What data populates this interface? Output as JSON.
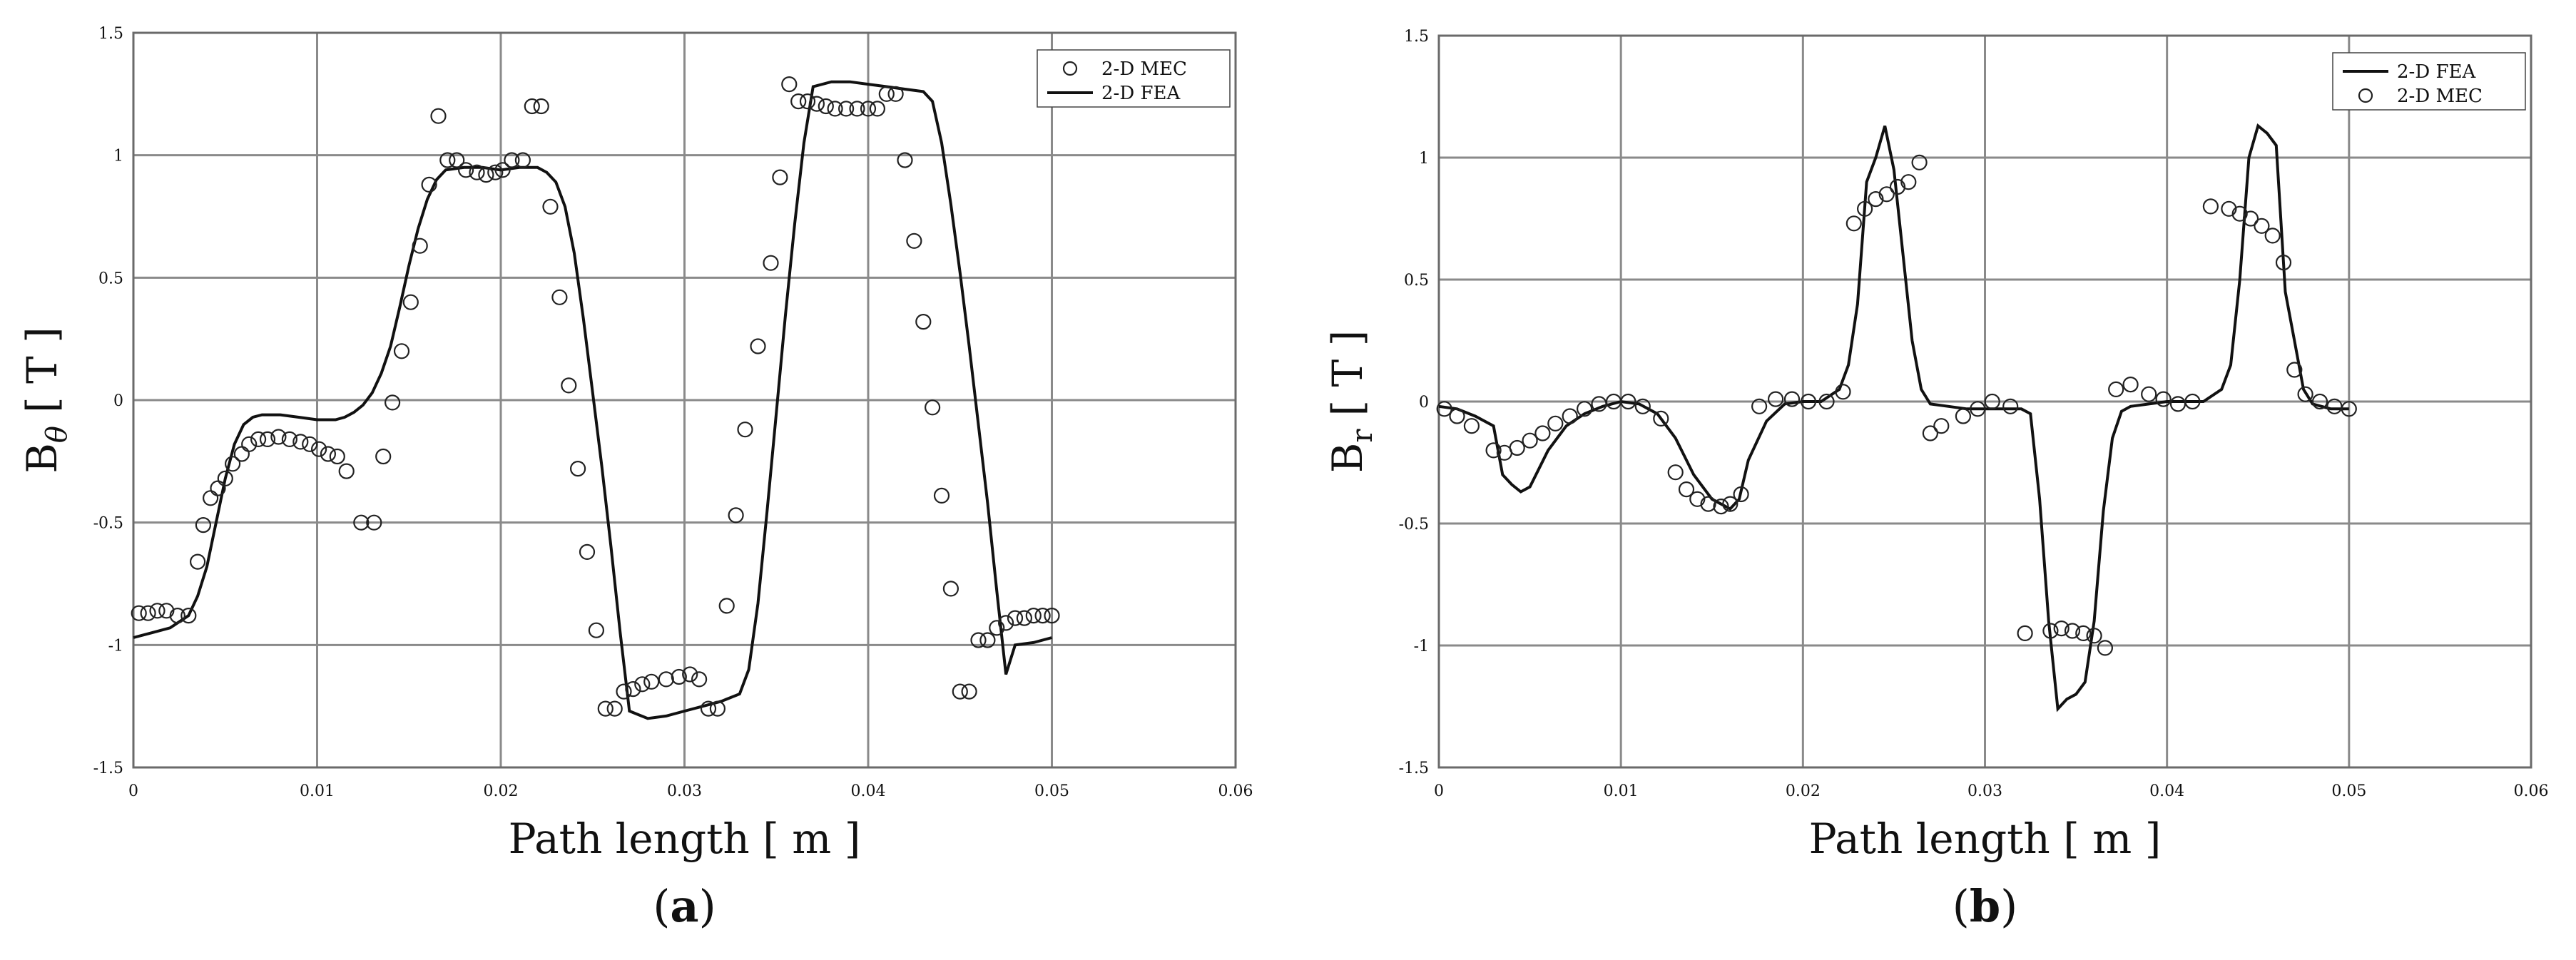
{
  "chart_data": [
    {
      "type": "line",
      "panel_label": "(a)",
      "panel_letter": "a",
      "xlabel": "Path length [ m ]",
      "ylabel_main": "B",
      "ylabel_sub": "θ",
      "ylabel_unit": "[ T ]",
      "xlim": [
        0,
        0.06
      ],
      "ylim": [
        -1.5,
        1.5
      ],
      "xticks": [
        "0",
        "0.01",
        "0.02",
        "0.03",
        "0.04",
        "0.05",
        "0.06"
      ],
      "yticks": [
        "-1.5",
        "-1",
        "-0.5",
        "0",
        "0.5",
        "1",
        "1.5"
      ],
      "grid": true,
      "legend_position": "top-right",
      "series": [
        {
          "name": "2-D MEC",
          "style": "markers",
          "marker": "open-circle",
          "color": "#222222",
          "x": [
            0.0003,
            0.0008,
            0.0013,
            0.0018,
            0.0024,
            0.003,
            0.0035,
            0.0038,
            0.0042,
            0.0046,
            0.005,
            0.0054,
            0.0059,
            0.0063,
            0.0068,
            0.0073,
            0.0079,
            0.0085,
            0.0091,
            0.0096,
            0.0101,
            0.0106,
            0.0111,
            0.0116,
            0.0124,
            0.0131,
            0.0136,
            0.0141,
            0.0146,
            0.0151,
            0.0156,
            0.0161,
            0.0166,
            0.0171,
            0.0176,
            0.0181,
            0.0187,
            0.0192,
            0.0197,
            0.0201,
            0.0206,
            0.0212,
            0.0217,
            0.0222,
            0.0227,
            0.0232,
            0.0237,
            0.0242,
            0.0247,
            0.0252,
            0.0257,
            0.0262,
            0.0267,
            0.0272,
            0.0277,
            0.0282,
            0.029,
            0.0297,
            0.0303,
            0.0308,
            0.0313,
            0.0318,
            0.0323,
            0.0328,
            0.0333,
            0.034,
            0.0347,
            0.0352,
            0.0357,
            0.0362,
            0.0367,
            0.0372,
            0.0377,
            0.0382,
            0.0388,
            0.0394,
            0.04,
            0.0405,
            0.041,
            0.0415,
            0.042,
            0.0425,
            0.043,
            0.0435,
            0.044,
            0.0445,
            0.045,
            0.0455,
            0.046,
            0.0465,
            0.047,
            0.0475,
            0.048,
            0.0485,
            0.049,
            0.0495,
            0.05
          ],
          "y": [
            -0.87,
            -0.87,
            -0.86,
            -0.86,
            -0.88,
            -0.88,
            -0.66,
            -0.51,
            -0.4,
            -0.36,
            -0.32,
            -0.26,
            -0.22,
            -0.18,
            -0.16,
            -0.16,
            -0.15,
            -0.16,
            -0.17,
            -0.18,
            -0.2,
            -0.22,
            -0.23,
            -0.29,
            -0.5,
            -0.5,
            -0.23,
            -0.01,
            0.2,
            0.4,
            0.63,
            0.88,
            1.16,
            0.98,
            0.98,
            0.94,
            0.93,
            0.92,
            0.93,
            0.94,
            0.98,
            0.98,
            1.2,
            1.2,
            0.79,
            0.42,
            0.06,
            -0.28,
            -0.62,
            -0.94,
            -1.26,
            -1.26,
            -1.19,
            -1.18,
            -1.16,
            -1.15,
            -1.14,
            -1.13,
            -1.12,
            -1.14,
            -1.26,
            -1.26,
            -0.84,
            -0.47,
            -0.12,
            0.22,
            0.56,
            0.91,
            1.29,
            1.22,
            1.22,
            1.21,
            1.2,
            1.19,
            1.19,
            1.19,
            1.19,
            1.19,
            1.25,
            1.25,
            0.98,
            0.65,
            0.32,
            -0.03,
            -0.39,
            -0.77,
            -1.19,
            -1.19,
            -0.98,
            -0.98,
            -0.93,
            -0.91,
            -0.89,
            -0.89,
            -0.88,
            -0.88,
            -0.88
          ]
        },
        {
          "name": "2-D FEA",
          "style": "line",
          "color": "#111111",
          "x": [
            0.0,
            0.001,
            0.002,
            0.003,
            0.0035,
            0.004,
            0.0045,
            0.005,
            0.0055,
            0.006,
            0.0065,
            0.007,
            0.0075,
            0.008,
            0.009,
            0.01,
            0.011,
            0.0115,
            0.012,
            0.0125,
            0.013,
            0.0135,
            0.014,
            0.0145,
            0.015,
            0.0155,
            0.016,
            0.0165,
            0.017,
            0.018,
            0.019,
            0.02,
            0.021,
            0.022,
            0.0225,
            0.023,
            0.0235,
            0.024,
            0.0245,
            0.025,
            0.0255,
            0.026,
            0.0265,
            0.027,
            0.028,
            0.029,
            0.03,
            0.031,
            0.032,
            0.033,
            0.0335,
            0.034,
            0.0345,
            0.035,
            0.0355,
            0.036,
            0.0365,
            0.037,
            0.038,
            0.039,
            0.04,
            0.041,
            0.042,
            0.043,
            0.0435,
            0.044,
            0.0445,
            0.045,
            0.0455,
            0.046,
            0.0465,
            0.047,
            0.0475,
            0.048,
            0.049,
            0.05
          ],
          "y": [
            -0.97,
            -0.95,
            -0.93,
            -0.88,
            -0.8,
            -0.68,
            -0.5,
            -0.32,
            -0.18,
            -0.1,
            -0.07,
            -0.06,
            -0.06,
            -0.06,
            -0.07,
            -0.08,
            -0.08,
            -0.07,
            -0.05,
            -0.02,
            0.03,
            0.11,
            0.22,
            0.38,
            0.55,
            0.7,
            0.82,
            0.9,
            0.94,
            0.95,
            0.95,
            0.94,
            0.95,
            0.95,
            0.93,
            0.89,
            0.79,
            0.6,
            0.33,
            0.03,
            -0.27,
            -0.6,
            -0.95,
            -1.27,
            -1.3,
            -1.29,
            -1.27,
            -1.25,
            -1.23,
            -1.2,
            -1.1,
            -0.83,
            -0.45,
            -0.05,
            0.35,
            0.72,
            1.05,
            1.28,
            1.3,
            1.3,
            1.29,
            1.28,
            1.27,
            1.26,
            1.22,
            1.05,
            0.8,
            0.52,
            0.22,
            -0.1,
            -0.42,
            -0.78,
            -1.12,
            -1.0,
            -0.99,
            -0.97
          ]
        }
      ]
    },
    {
      "type": "line",
      "panel_label": "(b)",
      "panel_letter": "b",
      "xlabel": "Path length [ m ]",
      "ylabel_main": "B",
      "ylabel_sub": "r",
      "ylabel_unit": "[ T ]",
      "xlim": [
        0,
        0.06
      ],
      "ylim": [
        -1.5,
        1.5
      ],
      "xticks": [
        "0",
        "0.01",
        "0.02",
        "0.03",
        "0.04",
        "0.05",
        "0.06"
      ],
      "yticks": [
        "-1.5",
        "-1",
        "-0.5",
        "0",
        "0.5",
        "1",
        "1.5"
      ],
      "grid": true,
      "legend_position": "top-right",
      "series": [
        {
          "name": "2-D FEA",
          "style": "line",
          "color": "#111111",
          "x": [
            0.0,
            0.001,
            0.002,
            0.003,
            0.0035,
            0.004,
            0.0045,
            0.005,
            0.006,
            0.007,
            0.008,
            0.009,
            0.01,
            0.011,
            0.012,
            0.013,
            0.014,
            0.015,
            0.016,
            0.0165,
            0.017,
            0.018,
            0.019,
            0.02,
            0.021,
            0.022,
            0.0225,
            0.023,
            0.0235,
            0.024,
            0.0245,
            0.025,
            0.0255,
            0.026,
            0.0265,
            0.027,
            0.028,
            0.029,
            0.03,
            0.031,
            0.032,
            0.0325,
            0.033,
            0.0335,
            0.034,
            0.0345,
            0.035,
            0.0355,
            0.036,
            0.0365,
            0.037,
            0.0375,
            0.038,
            0.039,
            0.04,
            0.041,
            0.042,
            0.043,
            0.0435,
            0.044,
            0.0445,
            0.045,
            0.0455,
            0.046,
            0.0465,
            0.047,
            0.0475,
            0.048,
            0.049,
            0.05
          ],
          "y": [
            -0.02,
            -0.03,
            -0.06,
            -0.1,
            -0.3,
            -0.34,
            -0.37,
            -0.35,
            -0.2,
            -0.1,
            -0.05,
            -0.02,
            0.0,
            -0.01,
            -0.05,
            -0.15,
            -0.3,
            -0.4,
            -0.44,
            -0.4,
            -0.24,
            -0.08,
            -0.01,
            0.0,
            0.0,
            0.05,
            0.15,
            0.4,
            0.9,
            1.0,
            1.13,
            0.95,
            0.6,
            0.25,
            0.05,
            -0.01,
            -0.02,
            -0.03,
            -0.03,
            -0.03,
            -0.03,
            -0.05,
            -0.4,
            -0.9,
            -1.26,
            -1.22,
            -1.2,
            -1.15,
            -0.9,
            -0.45,
            -0.15,
            -0.04,
            -0.02,
            -0.01,
            0.0,
            0.0,
            0.0,
            0.05,
            0.15,
            0.5,
            1.0,
            1.13,
            1.1,
            1.05,
            0.45,
            0.25,
            0.05,
            -0.01,
            -0.03,
            -0.03
          ],
          "_note": ""
        },
        {
          "name": "2-D MEC",
          "style": "markers",
          "marker": "open-circle",
          "color": "#222222",
          "x": [
            0.0003,
            0.001,
            0.0018,
            0.003,
            0.0036,
            0.0043,
            0.005,
            0.0057,
            0.0064,
            0.0072,
            0.008,
            0.0088,
            0.0096,
            0.0104,
            0.0112,
            0.0122,
            0.013,
            0.0136,
            0.0142,
            0.0148,
            0.0155,
            0.016,
            0.0166,
            0.0176,
            0.0185,
            0.0194,
            0.0203,
            0.0213,
            0.0222,
            0.0228,
            0.0234,
            0.024,
            0.0246,
            0.0252,
            0.0258,
            0.0264,
            0.027,
            0.0276,
            0.0288,
            0.0296,
            0.0304,
            0.0314,
            0.0322,
            0.0336,
            0.0342,
            0.0348,
            0.0354,
            0.036,
            0.0366,
            0.0372,
            0.038,
            0.039,
            0.0398,
            0.0406,
            0.0414,
            0.0424,
            0.0434,
            0.044,
            0.0446,
            0.0452,
            0.0458,
            0.0464,
            0.047,
            0.0476,
            0.0484,
            0.0492,
            0.05
          ],
          "y": [
            -0.03,
            -0.06,
            -0.1,
            -0.2,
            -0.21,
            -0.19,
            -0.16,
            -0.13,
            -0.09,
            -0.06,
            -0.03,
            -0.01,
            0.0,
            0.0,
            -0.02,
            -0.07,
            -0.29,
            -0.36,
            -0.4,
            -0.42,
            -0.43,
            -0.42,
            -0.38,
            -0.02,
            0.01,
            0.01,
            0.0,
            0.0,
            0.04,
            0.73,
            0.79,
            0.83,
            0.85,
            0.88,
            0.9,
            0.98,
            -0.13,
            -0.1,
            -0.06,
            -0.03,
            0.0,
            -0.02,
            -0.95,
            -0.94,
            -0.93,
            -0.94,
            -0.95,
            -0.96,
            -1.01,
            0.05,
            0.07,
            0.03,
            0.01,
            -0.01,
            0.0,
            0.8,
            0.79,
            0.77,
            0.75,
            0.72,
            0.68,
            0.57,
            0.13,
            0.03,
            0.0,
            -0.02,
            -0.03
          ]
        }
      ]
    }
  ]
}
